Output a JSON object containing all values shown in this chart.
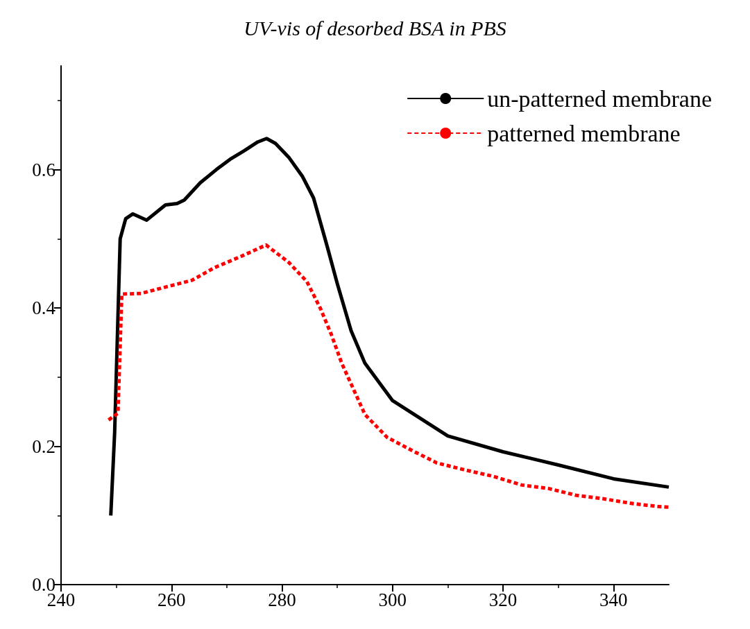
{
  "chart_data": {
    "type": "line",
    "title": "UV-vis of desorbed BSA in PBS",
    "xlim": [
      240,
      350
    ],
    "xticks": [
      240,
      260,
      280,
      300,
      320,
      340
    ],
    "ylim": [
      0,
      0.75
    ],
    "yticks": [
      {
        "value": 0,
        "label": "0.0"
      },
      {
        "value": 0.2,
        "label": "0.2"
      },
      {
        "value": 0.4,
        "label": "0.4"
      },
      {
        "value": 0.6,
        "label": "0.6"
      }
    ],
    "grid": false,
    "legend": "top right",
    "marker": "none",
    "series": [
      {
        "name": "un-patterned membrane",
        "color": "#000000",
        "line_style": "solid",
        "x": [
          249,
          249.7,
          250.7,
          251.7,
          253,
          255.5,
          258.9,
          261,
          262.3,
          265.2,
          268.1,
          270.6,
          273.1,
          275.6,
          277.2,
          278.8,
          281.2,
          283.7,
          285.7,
          288.2,
          290,
          292.5,
          295,
          300,
          310,
          320,
          330,
          340,
          350
        ],
        "values": [
          0.1,
          0.22,
          0.5,
          0.529,
          0.536,
          0.527,
          0.549,
          0.551,
          0.556,
          0.581,
          0.6,
          0.615,
          0.627,
          0.64,
          0.645,
          0.638,
          0.618,
          0.59,
          0.559,
          0.488,
          0.435,
          0.367,
          0.32,
          0.266,
          0.215,
          0.192,
          0.173,
          0.153,
          0.141
        ]
      },
      {
        "name": "patterned membrane",
        "color": "#ff0000",
        "line_style": "dashed",
        "x": [
          248.6,
          250.3,
          251,
          254.5,
          259.3,
          263.7,
          267.7,
          272.7,
          277.1,
          281.2,
          284.5,
          286.9,
          288.9,
          290.8,
          292.9,
          295,
          299,
          303.5,
          308,
          313,
          318,
          323.4,
          328.2,
          333.3,
          338.2,
          343.6,
          348,
          350
        ],
        "values": [
          0.238,
          0.248,
          0.42,
          0.421,
          0.431,
          0.44,
          0.458,
          0.475,
          0.491,
          0.466,
          0.438,
          0.4,
          0.362,
          0.32,
          0.283,
          0.246,
          0.213,
          0.194,
          0.176,
          0.166,
          0.157,
          0.144,
          0.139,
          0.129,
          0.124,
          0.117,
          0.113,
          0.112
        ]
      }
    ]
  }
}
